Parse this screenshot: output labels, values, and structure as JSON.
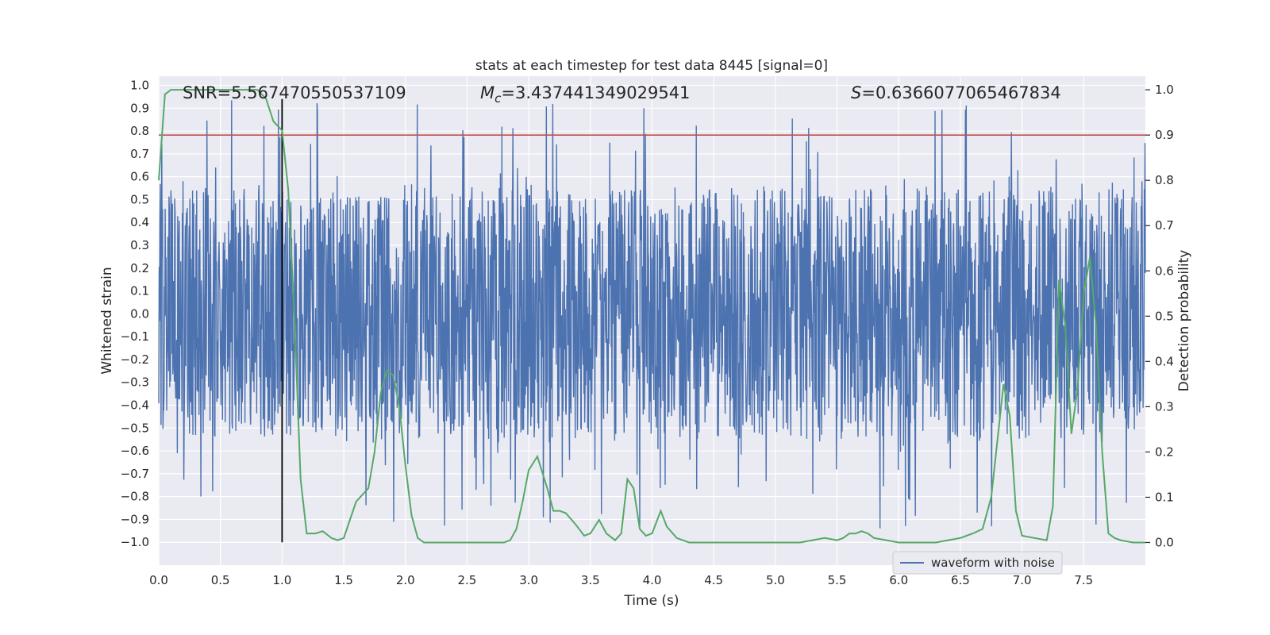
{
  "chart_data": {
    "type": "line",
    "title": "stats at each timestep for test data 8445 [signal=0]",
    "xlabel": "Time (s)",
    "ylabel_left": "Whitened strain",
    "ylabel_right": "Detection probability",
    "xlim": [
      0,
      8.0
    ],
    "ylim_left": [
      -1.1,
      1.04
    ],
    "ylim_right": [
      -0.05,
      1.03
    ],
    "x_ticks": [
      0.0,
      0.5,
      1.0,
      1.5,
      2.0,
      2.5,
      3.0,
      3.5,
      4.0,
      4.5,
      5.0,
      5.5,
      6.0,
      6.5,
      7.0,
      7.5
    ],
    "x_tick_labels": [
      "0.0",
      "0.5",
      "1.0",
      "1.5",
      "2.0",
      "2.5",
      "3.0",
      "3.5",
      "4.0",
      "4.5",
      "5.0",
      "5.5",
      "6.0",
      "6.5",
      "7.0",
      "7.5"
    ],
    "y_ticks_left": [
      1.0,
      0.9,
      0.8,
      0.7,
      0.6,
      0.5,
      0.4,
      0.3,
      0.2,
      0.1,
      0.0,
      -0.1,
      -0.2,
      -0.3,
      -0.4,
      -0.5,
      -0.6,
      -0.7,
      -0.8,
      -0.9,
      -1.0
    ],
    "y_tick_labels_left": [
      "1.0",
      "0.9",
      "0.8",
      "0.7",
      "0.6",
      "0.5",
      "0.4",
      "0.3",
      "0.2",
      "0.1",
      "0.0",
      "−0.1",
      "−0.2",
      "−0.3",
      "−0.4",
      "−0.5",
      "−0.6",
      "−0.7",
      "−0.8",
      "−0.9",
      "−1.0"
    ],
    "y_ticks_right": [
      1.0,
      0.9,
      0.8,
      0.7,
      0.6,
      0.5,
      0.4,
      0.3,
      0.2,
      0.1,
      0.0
    ],
    "y_tick_labels_right": [
      "1.0",
      "0.9",
      "0.8",
      "0.7",
      "0.6",
      "0.5",
      "0.4",
      "0.3",
      "0.2",
      "0.1",
      "0.0"
    ],
    "annotations": {
      "snr": "SNR=5.567470550537109",
      "mc_symbol": "M",
      "mc_subscript": "c",
      "mc_value": "=3.437441349029541",
      "s_symbol": "S",
      "s_value": "=0.6366077065467834"
    },
    "legend": {
      "position": "lower-right",
      "entries": [
        "waveform with noise"
      ]
    },
    "threshold_line": {
      "y_right": 0.9,
      "color": "#c44e52"
    },
    "marker_line": {
      "x": 1.0,
      "y_range_left": [
        -1.0,
        0.94
      ],
      "color": "#000000"
    },
    "series": [
      {
        "name": "waveform with noise",
        "axis": "left",
        "color": "#4c72b0",
        "style": "dense-noise",
        "band_core": 0.33,
        "band_common": 0.55,
        "spike_max": 0.94,
        "spike_min": -1.0
      },
      {
        "axis": "right",
        "color": "#55a868",
        "x": [
          0.0,
          0.05,
          0.1,
          0.15,
          0.2,
          0.3,
          0.4,
          0.5,
          0.6,
          0.7,
          0.8,
          0.87,
          0.93,
          1.0,
          1.05,
          1.1,
          1.15,
          1.2,
          1.27,
          1.33,
          1.4,
          1.45,
          1.5,
          1.6,
          1.7,
          1.75,
          1.8,
          1.85,
          1.9,
          1.95,
          2.0,
          2.05,
          2.1,
          2.15,
          2.2,
          2.3,
          2.5,
          2.7,
          2.8,
          2.85,
          2.9,
          2.95,
          3.0,
          3.07,
          3.15,
          3.2,
          3.25,
          3.3,
          3.38,
          3.45,
          3.5,
          3.57,
          3.63,
          3.7,
          3.75,
          3.8,
          3.85,
          3.9,
          3.95,
          4.0,
          4.07,
          4.12,
          4.2,
          4.3,
          4.5,
          4.8,
          5.0,
          5.2,
          5.3,
          5.4,
          5.5,
          5.55,
          5.6,
          5.65,
          5.7,
          5.75,
          5.8,
          5.9,
          6.0,
          6.1,
          6.2,
          6.3,
          6.4,
          6.5,
          6.6,
          6.68,
          6.75,
          6.85,
          6.9,
          6.95,
          7.0,
          7.1,
          7.2,
          7.25,
          7.3,
          7.35,
          7.4,
          7.45,
          7.5,
          7.55,
          7.6,
          7.65,
          7.7,
          7.75,
          7.8,
          7.9,
          8.0
        ],
        "y": [
          0.8,
          0.99,
          1.0,
          1.0,
          1.0,
          1.0,
          1.0,
          1.0,
          1.0,
          1.0,
          1.0,
          0.98,
          0.93,
          0.91,
          0.78,
          0.5,
          0.14,
          0.02,
          0.02,
          0.025,
          0.01,
          0.005,
          0.01,
          0.09,
          0.12,
          0.2,
          0.33,
          0.38,
          0.37,
          0.3,
          0.17,
          0.06,
          0.01,
          0.0,
          0.0,
          0.0,
          0.0,
          0.0,
          0.0,
          0.005,
          0.03,
          0.09,
          0.16,
          0.19,
          0.12,
          0.07,
          0.07,
          0.065,
          0.04,
          0.015,
          0.02,
          0.05,
          0.02,
          0.005,
          0.02,
          0.14,
          0.12,
          0.03,
          0.015,
          0.02,
          0.07,
          0.035,
          0.01,
          0.0,
          0.0,
          0.0,
          0.0,
          0.0,
          0.005,
          0.01,
          0.005,
          0.01,
          0.02,
          0.02,
          0.025,
          0.02,
          0.01,
          0.005,
          0.0,
          0.0,
          0.0,
          0.0,
          0.005,
          0.01,
          0.02,
          0.03,
          0.1,
          0.35,
          0.28,
          0.07,
          0.015,
          0.01,
          0.005,
          0.08,
          0.58,
          0.48,
          0.24,
          0.34,
          0.55,
          0.63,
          0.48,
          0.2,
          0.02,
          0.01,
          0.005,
          0.0,
          0.0
        ]
      }
    ]
  }
}
